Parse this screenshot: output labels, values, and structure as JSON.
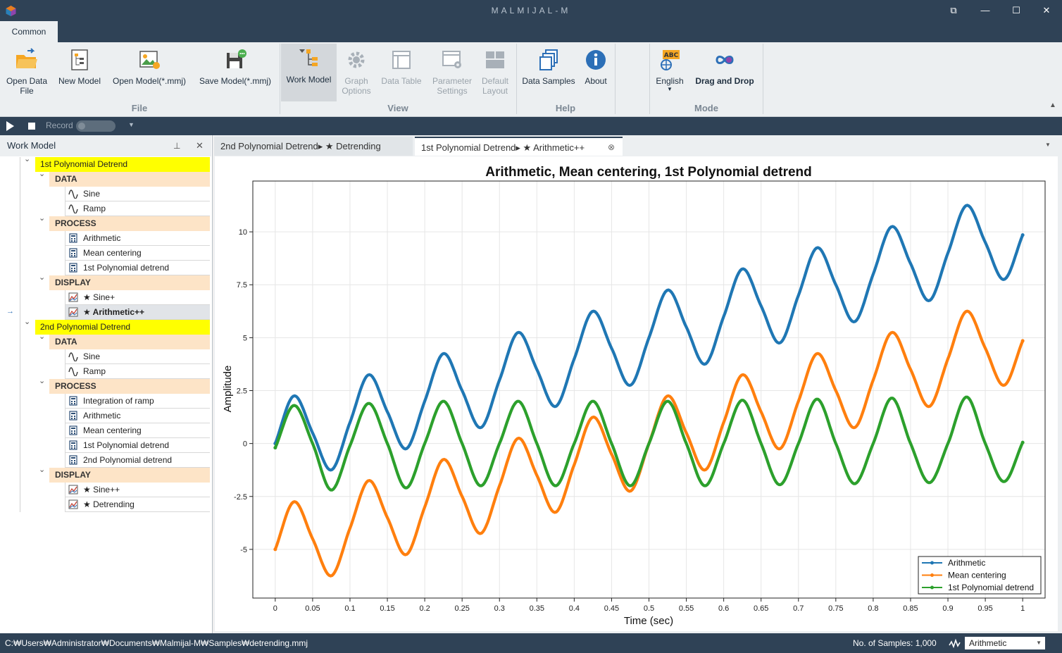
{
  "app": {
    "title": "MALMIJAL-M"
  },
  "window": {
    "restore_label": "⧉",
    "minimize_label": "—",
    "maximize_label": "☐",
    "close_label": "✕"
  },
  "ribbon": {
    "tab": "Common",
    "buttons": {
      "open_data_file": "Open Data\nFile",
      "new_model": "New Model",
      "open_model": "Open Model(*.mmj)",
      "save_model": "Save Model(*.mmj)",
      "work_model": "Work Model",
      "graph_options": "Graph\nOptions",
      "data_table": "Data Table",
      "parameter_settings": "Parameter\nSettings",
      "default_layout": "Default\nLayout",
      "data_samples": "Data Samples",
      "about": "About",
      "english": "English",
      "drag_and_drop": "Drag and Drop"
    },
    "groups": {
      "file": "File",
      "view": "View",
      "help": "Help",
      "mode": "Mode"
    },
    "colors": {
      "accent": "#f5a623",
      "brand": "#2f4256"
    }
  },
  "record": {
    "label": "Record"
  },
  "panel": {
    "title": "Work Model",
    "tree": [
      {
        "kind": "proj",
        "label": "1st Polynomial Detrend"
      },
      {
        "kind": "grp",
        "label": "DATA"
      },
      {
        "kind": "leaf",
        "icon": "wave-icon",
        "label": "Sine"
      },
      {
        "kind": "leaf",
        "icon": "wave-icon",
        "label": "Ramp"
      },
      {
        "kind": "grp",
        "label": "PROCESS"
      },
      {
        "kind": "leaf",
        "icon": "calculator-icon",
        "label": "Arithmetic"
      },
      {
        "kind": "leaf",
        "icon": "calculator-icon",
        "label": "Mean centering"
      },
      {
        "kind": "leaf",
        "icon": "calculator-icon",
        "label": "1st Polynomial detrend"
      },
      {
        "kind": "grp",
        "label": "DISPLAY"
      },
      {
        "kind": "leaf",
        "icon": "chart-icon",
        "label": "★ Sine+"
      },
      {
        "kind": "leaf",
        "icon": "chart-icon",
        "label": "★ Arithmetic++",
        "selected": true
      },
      {
        "kind": "proj",
        "label": "2nd Polynomial Detrend"
      },
      {
        "kind": "grp",
        "label": "DATA"
      },
      {
        "kind": "leaf",
        "icon": "wave-icon",
        "label": "Sine"
      },
      {
        "kind": "leaf",
        "icon": "wave-icon",
        "label": "Ramp"
      },
      {
        "kind": "grp",
        "label": "PROCESS"
      },
      {
        "kind": "leaf",
        "icon": "calculator-icon",
        "label": "Integration of ramp"
      },
      {
        "kind": "leaf",
        "icon": "calculator-icon",
        "label": "Arithmetic"
      },
      {
        "kind": "leaf",
        "icon": "calculator-icon",
        "label": "Mean centering"
      },
      {
        "kind": "leaf",
        "icon": "calculator-icon",
        "label": "1st Polynomial detrend"
      },
      {
        "kind": "leaf",
        "icon": "calculator-icon",
        "label": "2nd Polynomial detrend"
      },
      {
        "kind": "grp",
        "label": "DISPLAY"
      },
      {
        "kind": "leaf",
        "icon": "chart-icon",
        "label": "★ Sine++"
      },
      {
        "kind": "leaf",
        "icon": "chart-icon",
        "label": "★ Detrending"
      }
    ]
  },
  "tabs": [
    {
      "label": "2nd Polynomial Detrend▸ ★ Detrending",
      "active": false
    },
    {
      "label": "1st Polynomial Detrend▸ ★ Arithmetic++",
      "active": true
    }
  ],
  "chart_data": {
    "type": "line",
    "title": "Arithmetic, Mean centering, 1st Polynomial detrend",
    "xlabel": "Time (sec)",
    "ylabel": "Amplitude",
    "xlim": [
      -0.03,
      1.03
    ],
    "ylim": [
      -7.3,
      12.4
    ],
    "xticks": [
      0,
      0.05,
      0.1,
      0.15,
      0.2,
      0.25,
      0.3,
      0.35,
      0.4,
      0.45,
      0.5,
      0.55,
      0.6,
      0.65,
      0.7,
      0.75,
      0.8,
      0.85,
      0.9,
      0.95,
      1
    ],
    "xtick_labels": [
      "0",
      "0.05",
      "0.1",
      "0.15",
      "0.2",
      "0.25",
      "0.3",
      "0.35",
      "0.4",
      "0.45",
      "0.5",
      "0.55",
      "0.6",
      "0.65",
      "0.7",
      "0.75",
      "0.8",
      "0.85",
      "0.9",
      "0.95",
      "1"
    ],
    "yticks": [
      -5,
      -2.5,
      0,
      2.5,
      5,
      7.5,
      10
    ],
    "ytick_labels": [
      "-5",
      "-2.5",
      "0",
      "2.5",
      "5",
      "7.5",
      "10"
    ],
    "grid": true,
    "legend": "bottom-right",
    "series": [
      {
        "name": "Arithmetic",
        "color": "#1f77b4",
        "x": [
          0,
          0.025,
          0.05,
          0.075,
          0.1,
          0.125,
          0.15,
          0.175,
          0.2,
          0.225,
          0.25,
          0.275,
          0.3,
          0.325,
          0.35,
          0.375,
          0.4,
          0.425,
          0.45,
          0.475,
          0.5,
          0.525,
          0.55,
          0.575,
          0.6,
          0.625,
          0.65,
          0.675,
          0.7,
          0.725,
          0.75,
          0.775,
          0.8,
          0.825,
          0.85,
          0.875,
          0.9,
          0.925,
          0.95,
          0.975,
          1
        ],
        "y": [
          0,
          2.25,
          0.5,
          -1.25,
          1,
          3.25,
          1.5,
          -0.25,
          2,
          4.25,
          2.5,
          0.75,
          3,
          5.25,
          3.5,
          1.75,
          4,
          6.25,
          4.5,
          2.75,
          5,
          7.25,
          5.5,
          3.75,
          6,
          8.25,
          6.5,
          4.75,
          7,
          9.25,
          7.5,
          5.75,
          8,
          10.25,
          8.5,
          6.75,
          9,
          11.25,
          9.5,
          7.75,
          9.85
        ]
      },
      {
        "name": "Mean centering",
        "color": "#ff7f0e",
        "x": [
          0,
          0.025,
          0.05,
          0.075,
          0.1,
          0.125,
          0.15,
          0.175,
          0.2,
          0.225,
          0.25,
          0.275,
          0.3,
          0.325,
          0.35,
          0.375,
          0.4,
          0.425,
          0.45,
          0.475,
          0.5,
          0.525,
          0.55,
          0.575,
          0.6,
          0.625,
          0.65,
          0.675,
          0.7,
          0.725,
          0.75,
          0.775,
          0.8,
          0.825,
          0.85,
          0.875,
          0.9,
          0.925,
          0.95,
          0.975,
          1
        ],
        "y": [
          -5,
          -2.75,
          -4.5,
          -6.25,
          -4,
          -1.75,
          -3.5,
          -5.25,
          -3,
          -0.75,
          -2.5,
          -4.25,
          -2,
          0.25,
          -1.5,
          -3.25,
          -1,
          1.25,
          -0.5,
          -2.25,
          0,
          2.25,
          0.5,
          -1.25,
          1,
          3.25,
          1.5,
          -0.25,
          2,
          4.25,
          2.5,
          0.75,
          3,
          5.25,
          3.5,
          1.75,
          4,
          6.25,
          4.5,
          2.75,
          4.85
        ]
      },
      {
        "name": "1st Polynomial detrend",
        "color": "#2ca02c",
        "x": [
          0,
          0.025,
          0.05,
          0.075,
          0.1,
          0.125,
          0.15,
          0.175,
          0.2,
          0.225,
          0.25,
          0.275,
          0.3,
          0.325,
          0.35,
          0.375,
          0.4,
          0.425,
          0.45,
          0.475,
          0.5,
          0.525,
          0.55,
          0.575,
          0.6,
          0.625,
          0.65,
          0.675,
          0.7,
          0.725,
          0.75,
          0.775,
          0.8,
          0.825,
          0.85,
          0.875,
          0.9,
          0.925,
          0.95,
          0.975,
          1
        ],
        "y": [
          -0.2,
          1.8,
          0,
          -2.2,
          -0.1,
          1.9,
          0,
          -2.1,
          0,
          2,
          0,
          -2,
          0,
          2,
          0,
          -2,
          0,
          2,
          0,
          -2,
          0,
          2,
          0,
          -2,
          0,
          2.05,
          0,
          -1.95,
          0,
          2.1,
          0,
          -1.9,
          0,
          2.15,
          0,
          -1.85,
          0,
          2.2,
          0,
          -1.8,
          0.05
        ]
      }
    ]
  },
  "status": {
    "path": "C:₩Users₩Administrator₩Documents₩Malmijal-M₩Samples₩detrending.mmj",
    "samples": "No. of Samples: 1,000",
    "select_value": "Arithmetic"
  }
}
